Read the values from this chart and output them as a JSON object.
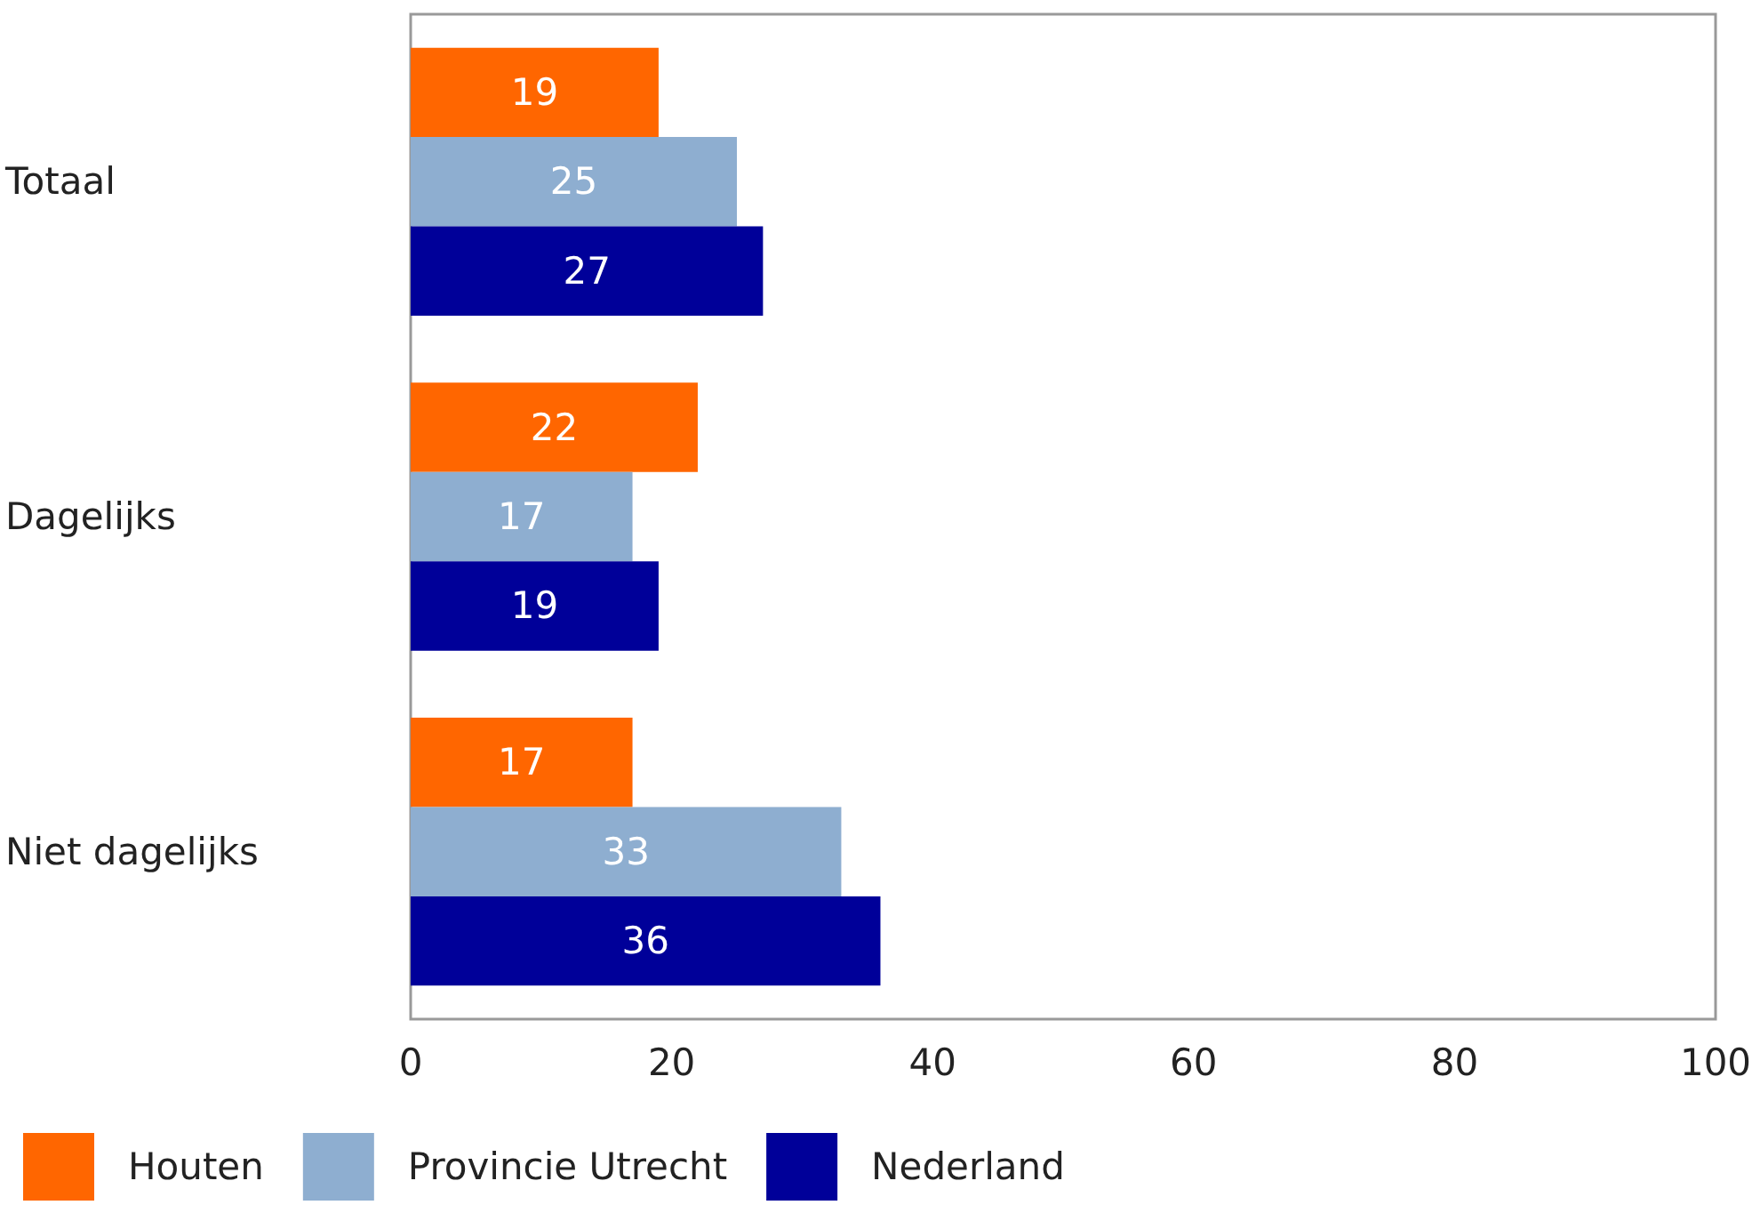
{
  "chart_data": {
    "type": "bar",
    "orientation": "horizontal",
    "categories": [
      "Totaal",
      "Dagelijks",
      "Niet dagelijks"
    ],
    "series": [
      {
        "name": "Houten",
        "color": "#ff6600",
        "values": [
          19,
          22,
          17
        ]
      },
      {
        "name": "Provincie Utrecht",
        "color": "#8eaed0",
        "values": [
          25,
          17,
          33
        ]
      },
      {
        "name": "Nederland",
        "color": "#000099",
        "values": [
          27,
          19,
          36
        ]
      }
    ],
    "xlim": [
      0,
      100
    ],
    "xticks": [
      0,
      20,
      40,
      60,
      80,
      100
    ],
    "grid": false,
    "legend": "bottom left",
    "data_labels": true
  }
}
